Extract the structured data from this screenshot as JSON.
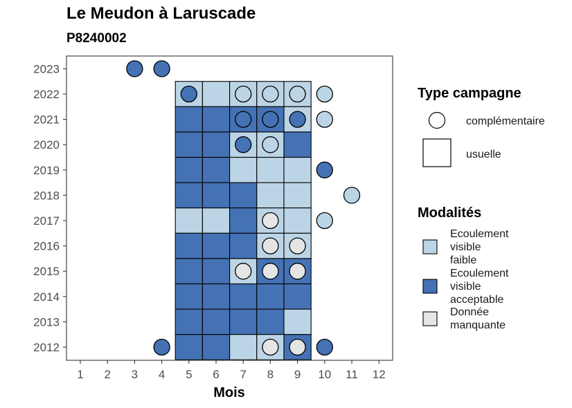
{
  "title": "Le Meudon à Laruscade",
  "subtitle": "P8240002",
  "colors": {
    "Ecoulement visible faible": "#bcd5e6",
    "Ecoulement visible acceptable": "#4472b4",
    "Donnée manquante": "#e5e5e5"
  },
  "chart_data": {
    "type": "heatmap",
    "xlabel": "Mois",
    "x_ticks": [
      1,
      2,
      3,
      4,
      5,
      6,
      7,
      8,
      9,
      10,
      11,
      12
    ],
    "y_ticks": [
      2012,
      2013,
      2014,
      2015,
      2016,
      2017,
      2018,
      2019,
      2020,
      2021,
      2022,
      2023
    ],
    "xlim": [
      1,
      12
    ],
    "ylim": [
      2012,
      2023
    ],
    "legend_shape": {
      "title": "Type campagne",
      "entries": [
        {
          "label": "complémentaire",
          "shape": "circle"
        },
        {
          "label": "usuelle",
          "shape": "square"
        }
      ]
    },
    "legend_fill": {
      "title": "Modalités",
      "entries": [
        {
          "lines": [
            "Ecoulement",
            "visible",
            "faible"
          ],
          "key": "Ecoulement visible faible"
        },
        {
          "lines": [
            "Ecoulement",
            "visible",
            "acceptable"
          ],
          "key": "Ecoulement visible acceptable"
        },
        {
          "lines": [
            "Donnée",
            "manquante"
          ],
          "key": "Donnée manquante"
        }
      ]
    },
    "usuelle": [
      {
        "year": 2022,
        "month": 5,
        "value": "Ecoulement visible faible"
      },
      {
        "year": 2022,
        "month": 6,
        "value": "Ecoulement visible faible"
      },
      {
        "year": 2022,
        "month": 7,
        "value": "Ecoulement visible faible"
      },
      {
        "year": 2022,
        "month": 8,
        "value": "Ecoulement visible faible"
      },
      {
        "year": 2022,
        "month": 9,
        "value": "Ecoulement visible faible"
      },
      {
        "year": 2021,
        "month": 5,
        "value": "Ecoulement visible acceptable"
      },
      {
        "year": 2021,
        "month": 6,
        "value": "Ecoulement visible acceptable"
      },
      {
        "year": 2021,
        "month": 7,
        "value": "Ecoulement visible acceptable"
      },
      {
        "year": 2021,
        "month": 8,
        "value": "Ecoulement visible acceptable"
      },
      {
        "year": 2021,
        "month": 9,
        "value": "Ecoulement visible faible"
      },
      {
        "year": 2020,
        "month": 5,
        "value": "Ecoulement visible acceptable"
      },
      {
        "year": 2020,
        "month": 6,
        "value": "Ecoulement visible acceptable"
      },
      {
        "year": 2020,
        "month": 7,
        "value": "Ecoulement visible faible"
      },
      {
        "year": 2020,
        "month": 8,
        "value": "Ecoulement visible faible"
      },
      {
        "year": 2020,
        "month": 9,
        "value": "Ecoulement visible acceptable"
      },
      {
        "year": 2019,
        "month": 5,
        "value": "Ecoulement visible acceptable"
      },
      {
        "year": 2019,
        "month": 6,
        "value": "Ecoulement visible acceptable"
      },
      {
        "year": 2019,
        "month": 7,
        "value": "Ecoulement visible faible"
      },
      {
        "year": 2019,
        "month": 8,
        "value": "Ecoulement visible faible"
      },
      {
        "year": 2019,
        "month": 9,
        "value": "Ecoulement visible faible"
      },
      {
        "year": 2018,
        "month": 5,
        "value": "Ecoulement visible acceptable"
      },
      {
        "year": 2018,
        "month": 6,
        "value": "Ecoulement visible acceptable"
      },
      {
        "year": 2018,
        "month": 7,
        "value": "Ecoulement visible acceptable"
      },
      {
        "year": 2018,
        "month": 8,
        "value": "Ecoulement visible faible"
      },
      {
        "year": 2018,
        "month": 9,
        "value": "Ecoulement visible faible"
      },
      {
        "year": 2017,
        "month": 5,
        "value": "Ecoulement visible faible"
      },
      {
        "year": 2017,
        "month": 6,
        "value": "Ecoulement visible faible"
      },
      {
        "year": 2017,
        "month": 7,
        "value": "Ecoulement visible acceptable"
      },
      {
        "year": 2017,
        "month": 8,
        "value": "Ecoulement visible faible"
      },
      {
        "year": 2017,
        "month": 9,
        "value": "Ecoulement visible faible"
      },
      {
        "year": 2016,
        "month": 5,
        "value": "Ecoulement visible acceptable"
      },
      {
        "year": 2016,
        "month": 6,
        "value": "Ecoulement visible acceptable"
      },
      {
        "year": 2016,
        "month": 7,
        "value": "Ecoulement visible acceptable"
      },
      {
        "year": 2016,
        "month": 8,
        "value": "Ecoulement visible faible"
      },
      {
        "year": 2016,
        "month": 9,
        "value": "Ecoulement visible faible"
      },
      {
        "year": 2015,
        "month": 5,
        "value": "Ecoulement visible acceptable"
      },
      {
        "year": 2015,
        "month": 6,
        "value": "Ecoulement visible acceptable"
      },
      {
        "year": 2015,
        "month": 7,
        "value": "Ecoulement visible faible"
      },
      {
        "year": 2015,
        "month": 8,
        "value": "Ecoulement visible acceptable"
      },
      {
        "year": 2015,
        "month": 9,
        "value": "Ecoulement visible acceptable"
      },
      {
        "year": 2014,
        "month": 5,
        "value": "Ecoulement visible acceptable"
      },
      {
        "year": 2014,
        "month": 6,
        "value": "Ecoulement visible acceptable"
      },
      {
        "year": 2014,
        "month": 7,
        "value": "Ecoulement visible acceptable"
      },
      {
        "year": 2014,
        "month": 8,
        "value": "Ecoulement visible acceptable"
      },
      {
        "year": 2014,
        "month": 9,
        "value": "Ecoulement visible acceptable"
      },
      {
        "year": 2013,
        "month": 5,
        "value": "Ecoulement visible acceptable"
      },
      {
        "year": 2013,
        "month": 6,
        "value": "Ecoulement visible acceptable"
      },
      {
        "year": 2013,
        "month": 7,
        "value": "Ecoulement visible acceptable"
      },
      {
        "year": 2013,
        "month": 8,
        "value": "Ecoulement visible acceptable"
      },
      {
        "year": 2013,
        "month": 9,
        "value": "Ecoulement visible faible"
      },
      {
        "year": 2012,
        "month": 5,
        "value": "Ecoulement visible acceptable"
      },
      {
        "year": 2012,
        "month": 6,
        "value": "Ecoulement visible acceptable"
      },
      {
        "year": 2012,
        "month": 7,
        "value": "Ecoulement visible faible"
      },
      {
        "year": 2012,
        "month": 8,
        "value": "Ecoulement visible faible"
      },
      {
        "year": 2012,
        "month": 9,
        "value": "Ecoulement visible acceptable"
      }
    ],
    "complementaire": [
      {
        "year": 2023,
        "month": 3,
        "value": "Ecoulement visible acceptable"
      },
      {
        "year": 2023,
        "month": 4,
        "value": "Ecoulement visible acceptable"
      },
      {
        "year": 2022,
        "month": 5,
        "value": "Ecoulement visible acceptable"
      },
      {
        "year": 2022,
        "month": 7,
        "value": "Ecoulement visible faible"
      },
      {
        "year": 2022,
        "month": 8,
        "value": "Ecoulement visible faible"
      },
      {
        "year": 2022,
        "month": 9,
        "value": "Ecoulement visible faible"
      },
      {
        "year": 2022,
        "month": 10,
        "value": "Ecoulement visible faible"
      },
      {
        "year": 2021,
        "month": 7,
        "value": "Ecoulement visible acceptable"
      },
      {
        "year": 2021,
        "month": 8,
        "value": "Ecoulement visible acceptable"
      },
      {
        "year": 2021,
        "month": 9,
        "value": "Ecoulement visible acceptable"
      },
      {
        "year": 2021,
        "month": 10,
        "value": "Ecoulement visible faible"
      },
      {
        "year": 2020,
        "month": 7,
        "value": "Ecoulement visible acceptable"
      },
      {
        "year": 2020,
        "month": 8,
        "value": "Ecoulement visible faible"
      },
      {
        "year": 2019,
        "month": 10,
        "value": "Ecoulement visible acceptable"
      },
      {
        "year": 2018,
        "month": 11,
        "value": "Ecoulement visible faible"
      },
      {
        "year": 2017,
        "month": 8,
        "value": "Donnée manquante"
      },
      {
        "year": 2017,
        "month": 10,
        "value": "Ecoulement visible faible"
      },
      {
        "year": 2016,
        "month": 8,
        "value": "Donnée manquante"
      },
      {
        "year": 2016,
        "month": 9,
        "value": "Donnée manquante"
      },
      {
        "year": 2015,
        "month": 7,
        "value": "Donnée manquante"
      },
      {
        "year": 2015,
        "month": 8,
        "value": "Donnée manquante"
      },
      {
        "year": 2015,
        "month": 9,
        "value": "Donnée manquante"
      },
      {
        "year": 2012,
        "month": 4,
        "value": "Ecoulement visible acceptable"
      },
      {
        "year": 2012,
        "month": 8,
        "value": "Donnée manquante"
      },
      {
        "year": 2012,
        "month": 9,
        "value": "Donnée manquante"
      },
      {
        "year": 2012,
        "month": 10,
        "value": "Ecoulement visible acceptable"
      }
    ]
  }
}
